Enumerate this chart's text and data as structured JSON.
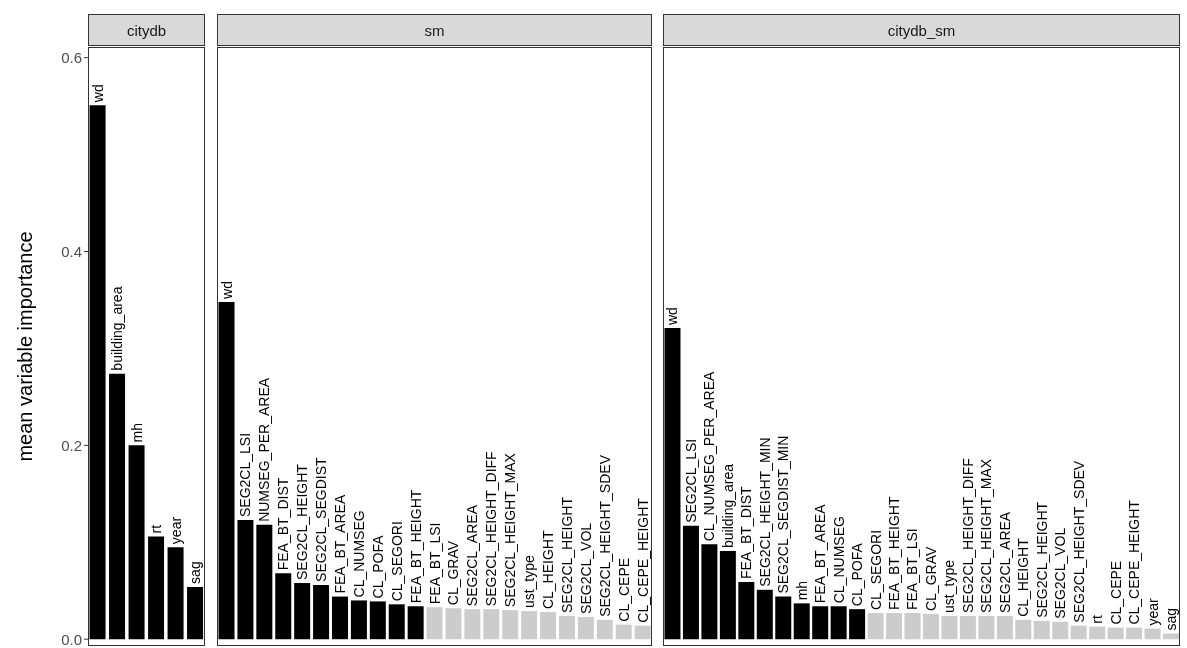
{
  "chart_data": [
    {
      "type": "bar",
      "title": "citydb",
      "ylabel": "mean variable importance",
      "tick_labels": "y",
      "ylim": [
        -0.007,
        0.611
      ],
      "yticks": [
        {
          "value": 0,
          "label": "0.0"
        },
        0.2,
        0.4,
        0.6
      ],
      "categories": [
        "wd",
        "building_area",
        "mh",
        "rt",
        "year",
        "sag"
      ],
      "values": [
        0.551,
        0.274,
        0.2,
        0.106,
        0.095,
        0.054
      ],
      "colors": [
        "#000000",
        "#000000",
        "#000000",
        "#000000",
        "#000000",
        "#000000"
      ]
    },
    {
      "type": "bar",
      "title": "sm",
      "tick_labels": false,
      "ylim": [
        -0.007,
        0.611
      ],
      "categories": [
        "wd",
        "SEG2CL_LSI",
        "NUMSEG_PER_AREA",
        "FEA_BT_DIST",
        "SEG2CL_HEIGHT",
        "SEG2CL_SEGDIST",
        "FEA_BT_AREA",
        "CL_NUMSEG",
        "CL_POFA",
        "CL_SEGORI",
        "FEA_BT_HEIGHT",
        "FEA_BT_LSI",
        "CL_GRAV",
        "SEG2CL_AREA",
        "SEG2CL_HEIGHT_DIFF",
        "SEG2CL_HEIGHT_MAX",
        "ust_type",
        "CL_HEIGHT",
        "SEG2CL_HEIGHT",
        "SEG2CL_VOL",
        "SEG2CL_HEIGHT_SDEV",
        "CL_CEPE",
        "CL_CEPE_HEIGHT"
      ],
      "values": [
        0.348,
        0.123,
        0.118,
        0.068,
        0.058,
        0.056,
        0.044,
        0.04,
        0.039,
        0.036,
        0.034,
        0.033,
        0.032,
        0.031,
        0.031,
        0.03,
        0.029,
        0.028,
        0.024,
        0.023,
        0.02,
        0.015,
        0.014
      ],
      "colors": [
        "#000000",
        "#000000",
        "#000000",
        "#000000",
        "#000000",
        "#000000",
        "#000000",
        "#000000",
        "#000000",
        "#000000",
        "#000000",
        "#cccccc",
        "#cccccc",
        "#cccccc",
        "#cccccc",
        "#cccccc",
        "#cccccc",
        "#cccccc",
        "#cccccc",
        "#cccccc",
        "#cccccc",
        "#cccccc",
        "#cccccc"
      ]
    },
    {
      "type": "bar",
      "title": "citydb_sm",
      "tick_labels": false,
      "ylim": [
        -0.007,
        0.611
      ],
      "categories": [
        "wd",
        "SEG2CL_LSI",
        "CL_NUMSEG_PER_AREA",
        "building_area",
        "FEA_BT_DIST",
        "SEG2CL_HEIGHT_MIN",
        "SEG2CL_SEGDIST_MIN",
        "mh",
        "FEA_BT_AREA",
        "CL_NUMSEG",
        "CL_POFA",
        "CL_SEGORI",
        "FEA_BT_HEIGHT",
        "FEA_BT_LSI",
        "CL_GRAV",
        "ust_type",
        "SEG2CL_HEIGHT_DIFF",
        "SEG2CL_HEIGHT_MAX",
        "SEG2CL_AREA",
        "CL_HEIGHT",
        "SEG2CL_HEIGHT",
        "SEG2CL_VOL",
        "SEG2CL_HEIGHT_SDEV",
        "rt",
        "CL_CEPE",
        "CL_CEPE_HEIGHT",
        "year",
        "sag"
      ],
      "values": [
        0.321,
        0.117,
        0.098,
        0.091,
        0.059,
        0.051,
        0.044,
        0.037,
        0.034,
        0.034,
        0.031,
        0.027,
        0.027,
        0.027,
        0.026,
        0.024,
        0.024,
        0.024,
        0.024,
        0.02,
        0.019,
        0.018,
        0.014,
        0.013,
        0.012,
        0.012,
        0.011,
        0.006
      ],
      "colors": [
        "#000000",
        "#000000",
        "#000000",
        "#000000",
        "#000000",
        "#000000",
        "#000000",
        "#000000",
        "#000000",
        "#000000",
        "#000000",
        "#cccccc",
        "#cccccc",
        "#cccccc",
        "#cccccc",
        "#cccccc",
        "#cccccc",
        "#cccccc",
        "#cccccc",
        "#cccccc",
        "#cccccc",
        "#cccccc",
        "#cccccc",
        "#cccccc",
        "#cccccc",
        "#cccccc",
        "#cccccc",
        "#cccccc"
      ]
    }
  ]
}
